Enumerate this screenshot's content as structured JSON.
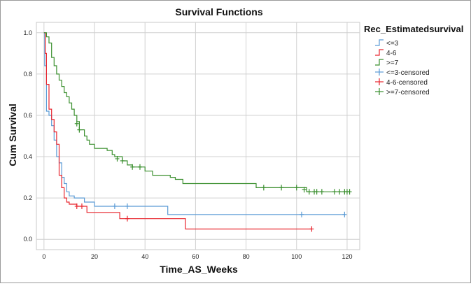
{
  "chart_data": {
    "type": "line",
    "title": "Survival Functions",
    "xlabel": "Time_AS_Weeks",
    "ylabel": "Cum Survival",
    "xlim": [
      -3,
      125
    ],
    "ylim": [
      -0.05,
      1.05
    ],
    "x_ticks": [
      0,
      20,
      40,
      60,
      80,
      100,
      120
    ],
    "y_ticks": [
      0.0,
      0.2,
      0.4,
      0.6,
      0.8,
      1.0
    ],
    "x_tick_labels": [
      "0",
      "20",
      "40",
      "60",
      "80",
      "100",
      "120"
    ],
    "y_tick_labels": [
      "0.0",
      "0.2",
      "0.4",
      "0.6",
      "0.8",
      "1.0"
    ],
    "grid": true,
    "legend_placement": "right",
    "legend_title": "Rec_Estimatedsurvival",
    "series": [
      {
        "name": "<=3",
        "color": "#5b9bd5",
        "steps": [
          [
            0,
            1.0
          ],
          [
            0.3,
            0.84
          ],
          [
            1,
            0.62
          ],
          [
            2,
            0.6
          ],
          [
            3,
            0.55
          ],
          [
            4,
            0.48
          ],
          [
            5,
            0.4
          ],
          [
            6,
            0.37
          ],
          [
            7,
            0.3
          ],
          [
            8,
            0.27
          ],
          [
            9,
            0.23
          ],
          [
            10,
            0.21
          ],
          [
            12,
            0.2
          ],
          [
            14,
            0.2
          ],
          [
            16,
            0.18
          ],
          [
            20,
            0.16
          ],
          [
            49,
            0.12
          ],
          [
            119,
            0.12
          ]
        ],
        "censored_name": "<=3-censored",
        "censored": [
          [
            28,
            0.16
          ],
          [
            33,
            0.16
          ],
          [
            102,
            0.12
          ],
          [
            119,
            0.12
          ]
        ]
      },
      {
        "name": "4-6",
        "color": "#e8262f",
        "steps": [
          [
            0,
            1.0
          ],
          [
            0.5,
            0.9
          ],
          [
            1,
            0.75
          ],
          [
            2,
            0.63
          ],
          [
            3,
            0.58
          ],
          [
            4,
            0.52
          ],
          [
            5,
            0.46
          ],
          [
            6,
            0.31
          ],
          [
            7,
            0.25
          ],
          [
            8,
            0.2
          ],
          [
            9,
            0.18
          ],
          [
            10,
            0.17
          ],
          [
            13,
            0.16
          ],
          [
            17,
            0.13
          ],
          [
            30,
            0.1
          ],
          [
            56,
            0.05
          ],
          [
            106,
            0.05
          ]
        ],
        "censored_name": "4-6-censored",
        "censored": [
          [
            13,
            0.16
          ],
          [
            15,
            0.16
          ],
          [
            33,
            0.1
          ],
          [
            106,
            0.05
          ]
        ]
      },
      {
        "name": ">=7",
        "color": "#3a8f2e",
        "steps": [
          [
            0,
            1.0
          ],
          [
            1,
            0.98
          ],
          [
            2,
            0.95
          ],
          [
            3,
            0.88
          ],
          [
            4,
            0.84
          ],
          [
            5,
            0.8
          ],
          [
            6,
            0.77
          ],
          [
            7,
            0.74
          ],
          [
            8,
            0.71
          ],
          [
            9,
            0.69
          ],
          [
            10,
            0.66
          ],
          [
            11,
            0.63
          ],
          [
            12,
            0.6
          ],
          [
            13,
            0.57
          ],
          [
            14,
            0.53
          ],
          [
            16,
            0.5
          ],
          [
            17,
            0.48
          ],
          [
            18,
            0.46
          ],
          [
            20,
            0.44
          ],
          [
            25,
            0.43
          ],
          [
            27,
            0.41
          ],
          [
            28,
            0.4
          ],
          [
            31,
            0.38
          ],
          [
            33,
            0.36
          ],
          [
            35,
            0.35
          ],
          [
            40,
            0.33
          ],
          [
            43,
            0.31
          ],
          [
            50,
            0.3
          ],
          [
            52,
            0.29
          ],
          [
            55,
            0.27
          ],
          [
            84,
            0.25
          ],
          [
            104,
            0.23
          ],
          [
            121,
            0.23
          ]
        ],
        "censored_name": ">=7-censored",
        "censored": [
          [
            13,
            0.56
          ],
          [
            14,
            0.53
          ],
          [
            29,
            0.39
          ],
          [
            31,
            0.38
          ],
          [
            35,
            0.35
          ],
          [
            38,
            0.35
          ],
          [
            87,
            0.25
          ],
          [
            94,
            0.25
          ],
          [
            100,
            0.25
          ],
          [
            103,
            0.24
          ],
          [
            105,
            0.23
          ],
          [
            107,
            0.23
          ],
          [
            108,
            0.23
          ],
          [
            110,
            0.23
          ],
          [
            115,
            0.23
          ],
          [
            117,
            0.23
          ],
          [
            119,
            0.23
          ],
          [
            120,
            0.23
          ],
          [
            121,
            0.23
          ]
        ]
      }
    ]
  }
}
